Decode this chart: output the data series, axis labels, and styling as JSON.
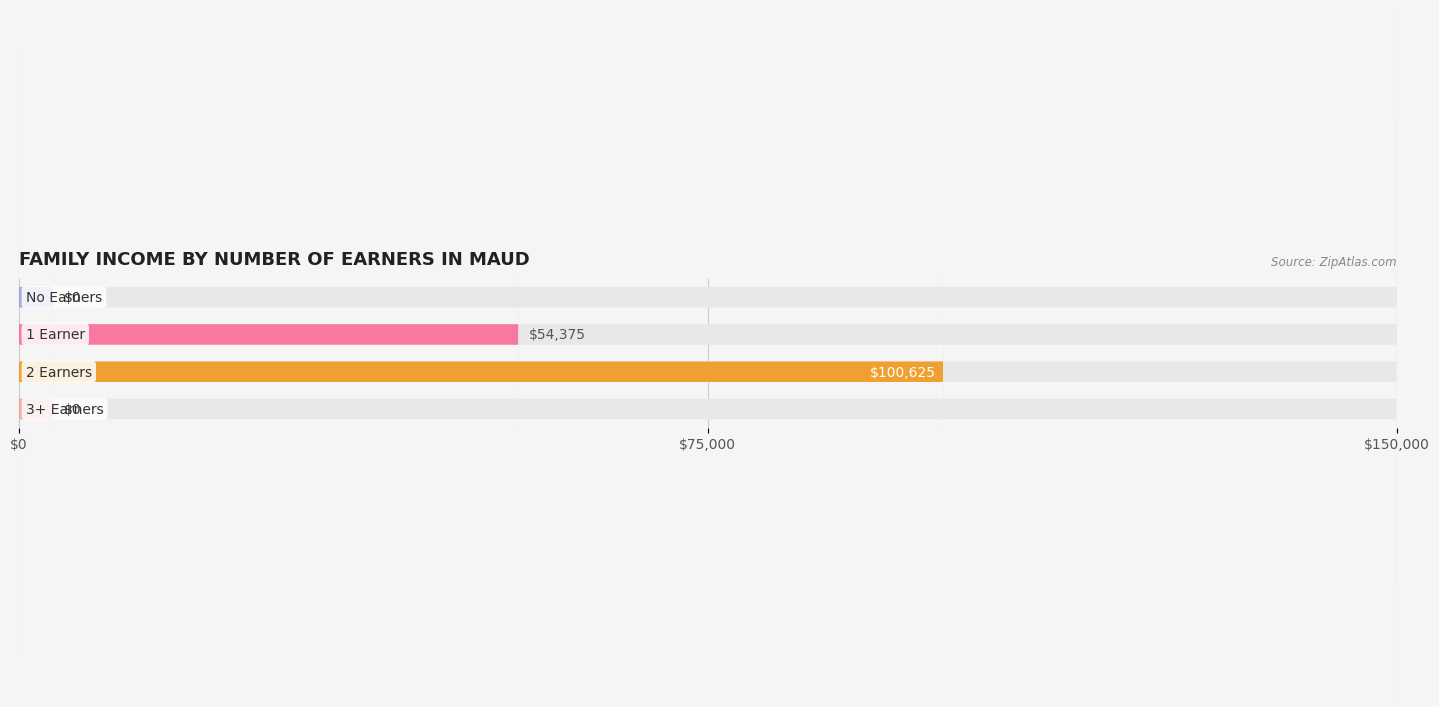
{
  "title": "FAMILY INCOME BY NUMBER OF EARNERS IN MAUD",
  "source": "Source: ZipAtlas.com",
  "categories": [
    "No Earners",
    "1 Earner",
    "2 Earners",
    "3+ Earners"
  ],
  "values": [
    0,
    54375,
    100625,
    0
  ],
  "bar_colors": [
    "#a8a8d8",
    "#f878a0",
    "#f0a030",
    "#f0a8a0"
  ],
  "label_colors": [
    "#555555",
    "#555555",
    "#ffffff",
    "#555555"
  ],
  "xlim": [
    0,
    150000
  ],
  "xticks": [
    0,
    75000,
    150000
  ],
  "xtick_labels": [
    "$0",
    "$75,000",
    "$150,000"
  ],
  "value_labels": [
    "$0",
    "$54,375",
    "$100,625",
    "$0"
  ],
  "background_color": "#f5f5f5",
  "bar_bg_color": "#e8e8e8",
  "title_fontsize": 13,
  "tick_fontsize": 10,
  "label_fontsize": 10,
  "bar_height": 0.55,
  "fig_width": 14.06,
  "fig_height": 2.33
}
